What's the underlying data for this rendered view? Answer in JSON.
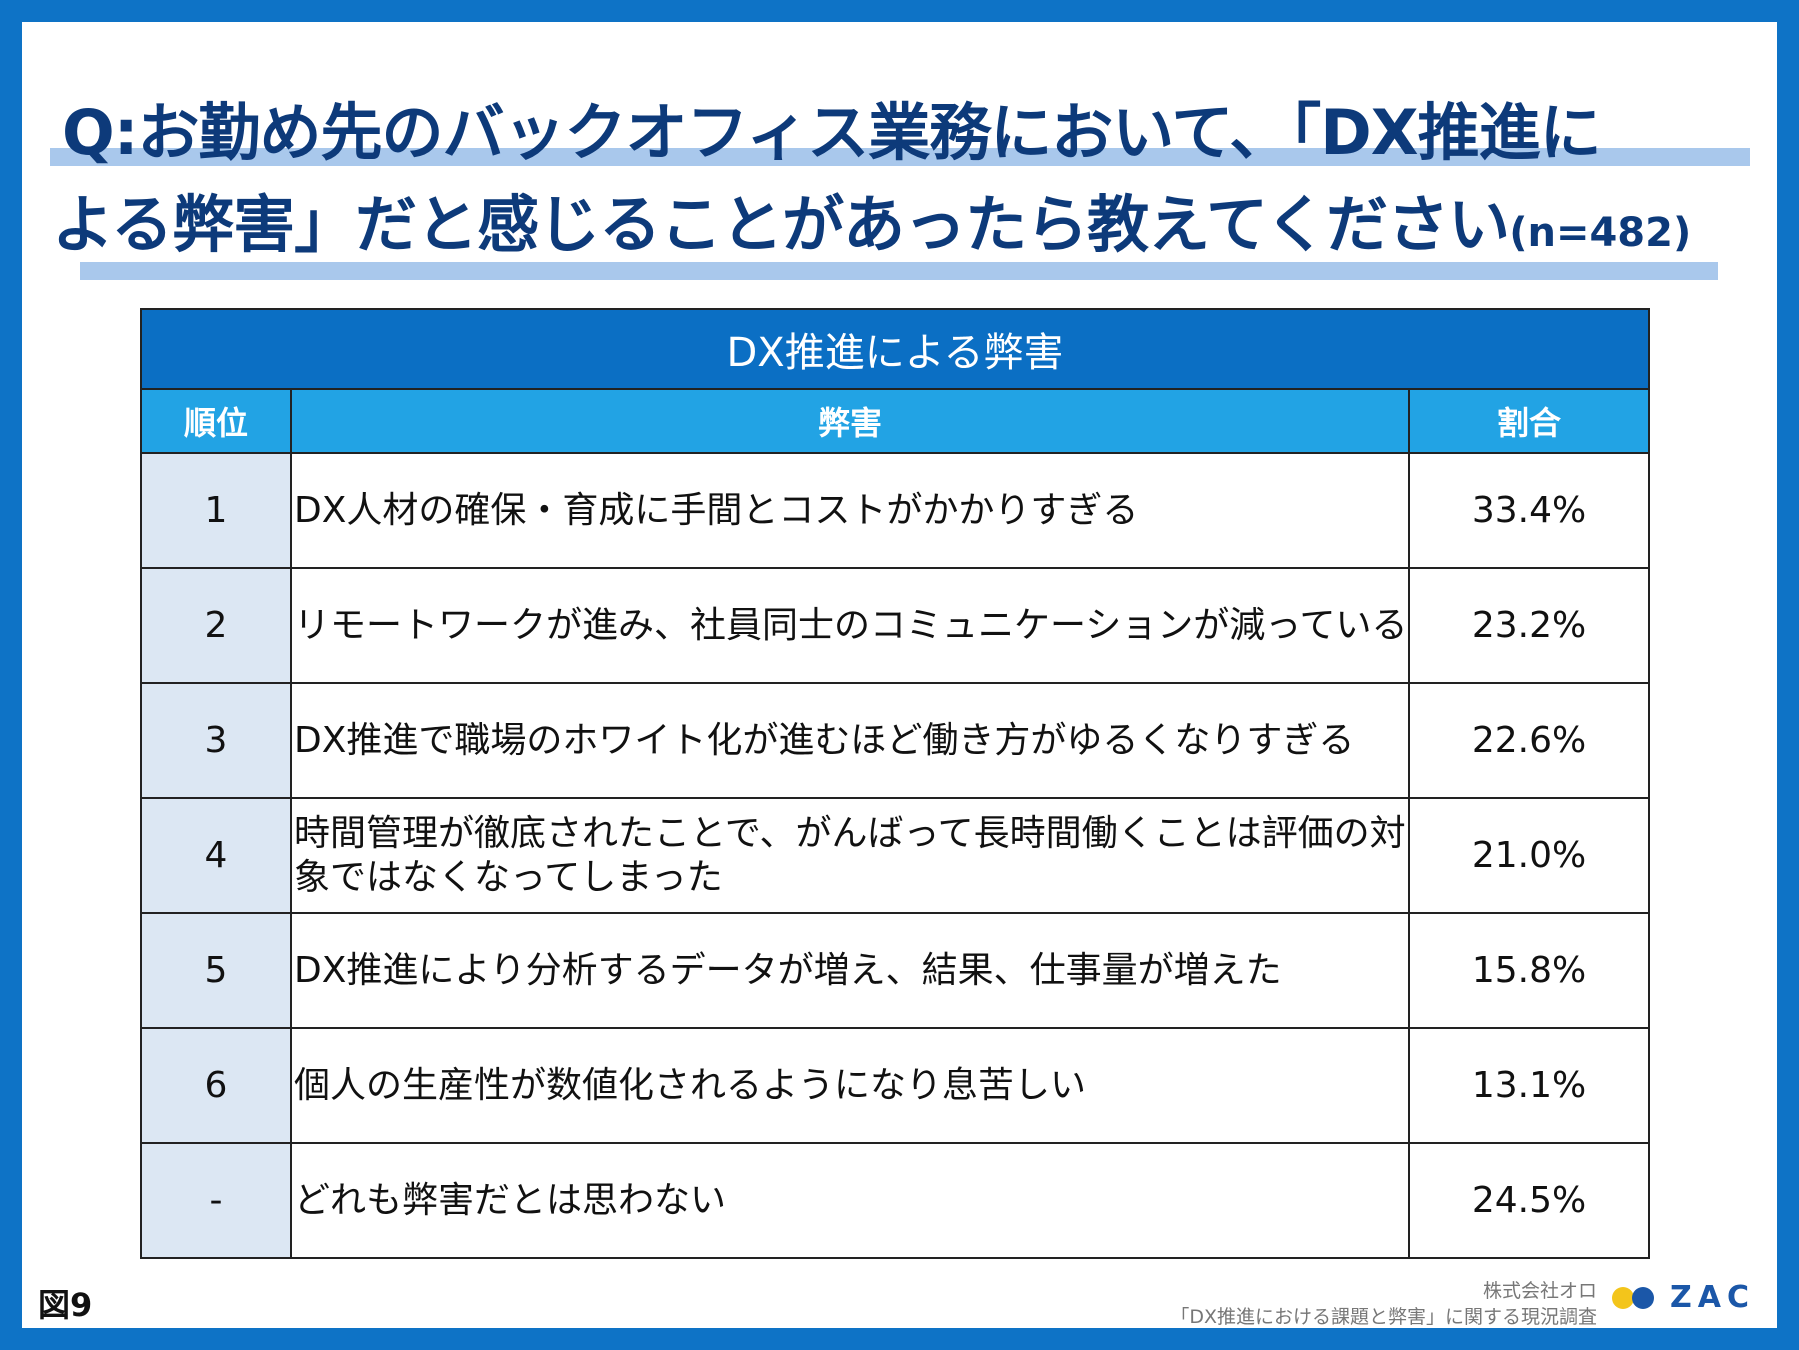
{
  "title": {
    "line1": "Q:お勤め先のバックオフィス業務において、「DX推進に",
    "line2": "よる弊害」だと感じることがあったら教えてください",
    "sample": "(n=482)"
  },
  "table": {
    "caption": "DX推進による弊害",
    "headers": {
      "rank": "順位",
      "item": "弊害",
      "ratio": "割合"
    },
    "rows": [
      {
        "rank": "1",
        "text": "DX人材の確保・育成に手間とコストがかかりすぎる",
        "pct": "33.4%"
      },
      {
        "rank": "2",
        "text": "リモートワークが進み、社員同士のコミュニケーションが減っている",
        "pct": "23.2%"
      },
      {
        "rank": "3",
        "text": "DX推進で職場のホワイト化が進むほど働き方がゆるくなりすぎる",
        "pct": "22.6%"
      },
      {
        "rank": "4",
        "text": "時間管理が徹底されたことで、がんばって長時間働くことは評価の対象ではなくなってしまった",
        "pct": "21.0%"
      },
      {
        "rank": "5",
        "text": "DX推進により分析するデータが増え、結果、仕事量が増えた",
        "pct": "15.8%"
      },
      {
        "rank": "6",
        "text": "個人の生産性が数値化されるようになり息苦しい",
        "pct": "13.1%"
      },
      {
        "rank": "-",
        "text": "どれも弊害だとは思わない",
        "pct": "24.5%"
      }
    ]
  },
  "figure_label": "図9",
  "source": {
    "company": "株式会社オロ",
    "survey": "「DX推進における課題と弊害」に関する現況調査"
  },
  "logo": {
    "text": "ZAC",
    "dot_colors": [
      "#f3c51b",
      "#1b57a8"
    ]
  },
  "colors": {
    "frame": "#0e73c6",
    "title": "#0d3a7a",
    "caption_bg": "#0b6fc4",
    "header_bg": "#22a3e4",
    "rank_bg": "#dce7f3"
  }
}
